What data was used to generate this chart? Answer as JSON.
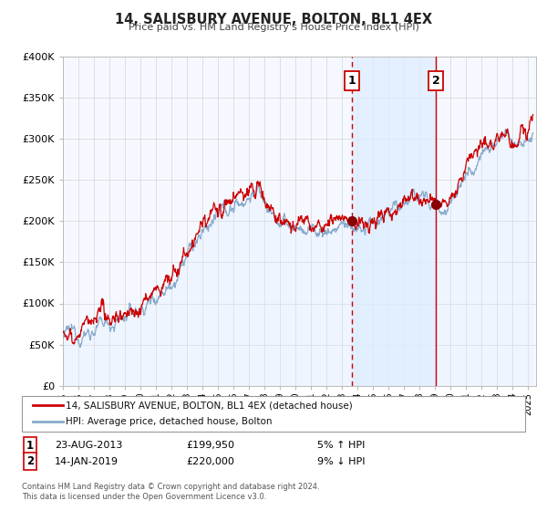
{
  "title": "14, SALISBURY AVENUE, BOLTON, BL1 4EX",
  "subtitle": "Price paid vs. HM Land Registry's House Price Index (HPI)",
  "ylim": [
    0,
    400000
  ],
  "xlim_start": 1995.0,
  "xlim_end": 2025.5,
  "yticks": [
    0,
    50000,
    100000,
    150000,
    200000,
    250000,
    300000,
    350000,
    400000
  ],
  "ytick_labels": [
    "£0",
    "£50K",
    "£100K",
    "£150K",
    "£200K",
    "£250K",
    "£300K",
    "£350K",
    "£400K"
  ],
  "xticks": [
    1995,
    1996,
    1997,
    1998,
    1999,
    2000,
    2001,
    2002,
    2003,
    2004,
    2005,
    2006,
    2007,
    2008,
    2009,
    2010,
    2011,
    2012,
    2013,
    2014,
    2015,
    2016,
    2017,
    2018,
    2019,
    2020,
    2021,
    2022,
    2023,
    2024,
    2025
  ],
  "line1_color": "#cc0000",
  "line2_color": "#88aacc",
  "line2_fill_color": "#ddeeff",
  "shade_color": "#ddeeff",
  "marker_color": "#880000",
  "event1_x": 2013.646,
  "event1_y": 199950,
  "event2_x": 2019.042,
  "event2_y": 220000,
  "legend_line1": "14, SALISBURY AVENUE, BOLTON, BL1 4EX (detached house)",
  "legend_line2": "HPI: Average price, detached house, Bolton",
  "annotation1_date": "23-AUG-2013",
  "annotation1_price": "£199,950",
  "annotation1_hpi": "5% ↑ HPI",
  "annotation2_date": "14-JAN-2019",
  "annotation2_price": "£220,000",
  "annotation2_hpi": "9% ↓ HPI",
  "footer1": "Contains HM Land Registry data © Crown copyright and database right 2024.",
  "footer2": "This data is licensed under the Open Government Licence v3.0.",
  "background_color": "#ffffff",
  "plot_bg_color": "#f5f8ff",
  "grid_color": "#cccccc"
}
